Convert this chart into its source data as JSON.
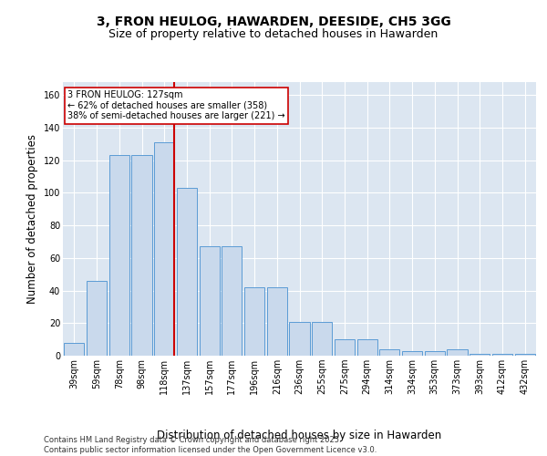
{
  "title": "3, FRON HEULOG, HAWARDEN, DEESIDE, CH5 3GG",
  "subtitle": "Size of property relative to detached houses in Hawarden",
  "xlabel": "Distribution of detached houses by size in Hawarden",
  "ylabel": "Number of detached properties",
  "bar_labels": [
    "39sqm",
    "59sqm",
    "78sqm",
    "98sqm",
    "118sqm",
    "137sqm",
    "157sqm",
    "177sqm",
    "196sqm",
    "216sqm",
    "236sqm",
    "255sqm",
    "275sqm",
    "294sqm",
    "314sqm",
    "334sqm",
    "353sqm",
    "373sqm",
    "393sqm",
    "412sqm",
    "432sqm"
  ],
  "bar_values": [
    8,
    46,
    123,
    123,
    131,
    103,
    67,
    67,
    42,
    42,
    21,
    21,
    10,
    10,
    4,
    3,
    3,
    4,
    1,
    1,
    1
  ],
  "bar_color": "#c9d9ec",
  "bar_edge_color": "#5b9bd5",
  "background_color": "#dce6f1",
  "grid_color": "#ffffff",
  "vline_color": "#cc0000",
  "annotation_text": "3 FRON HEULOG: 127sqm\n← 62% of detached houses are smaller (358)\n38% of semi-detached houses are larger (221) →",
  "annotation_box_color": "#ffffff",
  "annotation_box_edge": "#cc0000",
  "ylim": [
    0,
    168
  ],
  "yticks": [
    0,
    20,
    40,
    60,
    80,
    100,
    120,
    140,
    160
  ],
  "footer_text": "Contains HM Land Registry data © Crown copyright and database right 2025.\nContains public sector information licensed under the Open Government Licence v3.0.",
  "title_fontsize": 10,
  "subtitle_fontsize": 9,
  "tick_fontsize": 7,
  "label_fontsize": 8.5,
  "footer_fontsize": 6
}
